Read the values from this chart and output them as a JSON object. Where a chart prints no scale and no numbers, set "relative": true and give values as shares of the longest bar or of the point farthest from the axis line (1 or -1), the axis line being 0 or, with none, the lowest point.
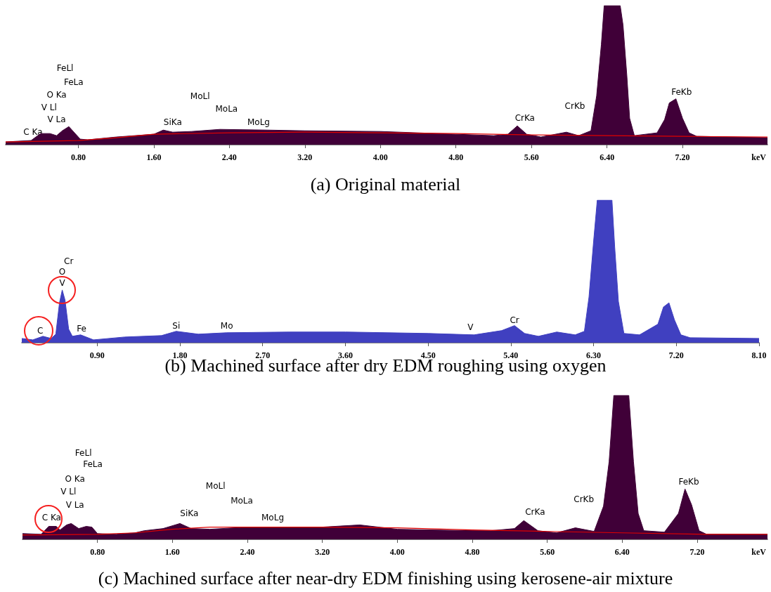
{
  "chart_data": [
    {
      "type": "area",
      "title": "(a) Original material",
      "xlabel": "keV",
      "relative": true,
      "grid": false,
      "xlim": [
        0.03,
        8.1
      ],
      "xticks": [
        {
          "value": 0.8,
          "label": "0.80"
        },
        {
          "value": 1.6,
          "label": "1.60"
        },
        {
          "value": 2.4,
          "label": "2.40"
        },
        {
          "value": 3.2,
          "label": "3.20"
        },
        {
          "value": 4.0,
          "label": "4.00"
        },
        {
          "value": 4.8,
          "label": "4.80"
        },
        {
          "value": 5.6,
          "label": "5.60"
        },
        {
          "value": 6.4,
          "label": "6.40"
        },
        {
          "value": 7.2,
          "label": "7.20"
        }
      ],
      "series": [
        {
          "color": "#400038",
          "x": [
            0.03,
            0.3,
            0.4,
            0.5,
            0.57,
            0.63,
            0.7,
            0.76,
            0.82,
            0.9,
            1.2,
            1.6,
            1.7,
            1.8,
            2.0,
            2.3,
            2.8,
            3.2,
            4.0,
            4.8,
            5.2,
            5.35,
            5.45,
            5.55,
            5.7,
            5.97,
            6.1,
            6.23,
            6.29,
            6.34,
            6.37,
            6.54,
            6.57,
            6.61,
            6.64,
            6.69,
            6.93,
            7.01,
            7.06,
            7.13,
            7.2,
            7.27,
            7.35,
            8.1
          ],
          "values": [
            0.02,
            0.03,
            0.08,
            0.08,
            0.065,
            0.1,
            0.13,
            0.085,
            0.04,
            0.035,
            0.055,
            0.075,
            0.105,
            0.09,
            0.095,
            0.11,
            0.105,
            0.1,
            0.095,
            0.075,
            0.065,
            0.075,
            0.135,
            0.075,
            0.055,
            0.09,
            0.065,
            0.1,
            0.35,
            0.72,
            1.0,
            1.0,
            0.86,
            0.5,
            0.19,
            0.065,
            0.085,
            0.18,
            0.3,
            0.33,
            0.19,
            0.085,
            0.06,
            0.05
          ]
        },
        {
          "type": "line",
          "color": "#e00000",
          "x": [
            0.03,
            0.8,
            1.2,
            1.6,
            2.4,
            3.2,
            4.0,
            4.8,
            5.6,
            6.4,
            7.2,
            8.1
          ],
          "values": [
            0.02,
            0.03,
            0.05,
            0.075,
            0.085,
            0.09,
            0.085,
            0.08,
            0.07,
            0.065,
            0.06,
            0.055
          ]
        }
      ],
      "annotations": [
        "C Ka",
        "V La",
        "V Ll",
        "O Ka",
        "FeLa",
        "FeLl",
        "SiKa",
        "MoLl",
        "MoLa",
        "MoLg",
        "CrKa",
        "CrKb",
        "FeKb"
      ]
    },
    {
      "type": "area",
      "title": "(b) Machined surface after dry EDM roughing using oxygen",
      "relative": true,
      "grid": false,
      "xlim": [
        0.08,
        8.1
      ],
      "xticks": [
        {
          "value": 0.9,
          "label": "0.90"
        },
        {
          "value": 1.8,
          "label": "1.80"
        },
        {
          "value": 2.7,
          "label": "2.70"
        },
        {
          "value": 3.6,
          "label": "3.60"
        },
        {
          "value": 4.5,
          "label": "4.50"
        },
        {
          "value": 5.4,
          "label": "5.40"
        },
        {
          "value": 6.3,
          "label": "6.30"
        },
        {
          "value": 7.2,
          "label": "7.20"
        },
        {
          "value": 8.1,
          "label": "8.10"
        }
      ],
      "series": [
        {
          "color": "#4040c0",
          "x": [
            0.08,
            0.2,
            0.31,
            0.4,
            0.45,
            0.49,
            0.52,
            0.55,
            0.59,
            0.63,
            0.72,
            0.86,
            1.2,
            1.6,
            1.76,
            2.0,
            2.31,
            3.0,
            3.6,
            4.5,
            5.0,
            5.3,
            5.44,
            5.55,
            5.7,
            5.9,
            6.1,
            6.2,
            6.25,
            6.3,
            6.34,
            6.5,
            6.53,
            6.57,
            6.63,
            6.8,
            7.0,
            7.06,
            7.12,
            7.18,
            7.25,
            7.35,
            8.1
          ],
          "values": [
            0.03,
            0.02,
            0.045,
            0.03,
            0.06,
            0.28,
            0.37,
            0.3,
            0.095,
            0.045,
            0.055,
            0.02,
            0.04,
            0.05,
            0.08,
            0.06,
            0.07,
            0.075,
            0.075,
            0.065,
            0.055,
            0.085,
            0.12,
            0.065,
            0.045,
            0.075,
            0.055,
            0.08,
            0.32,
            0.71,
            1.0,
            1.0,
            0.67,
            0.29,
            0.065,
            0.055,
            0.13,
            0.25,
            0.28,
            0.16,
            0.055,
            0.035,
            0.03
          ]
        }
      ],
      "annotations": [
        "C",
        "V",
        "O",
        "Cr",
        "Fe",
        "Si",
        "Mo",
        "V",
        "Cr"
      ]
    },
    {
      "type": "area",
      "title": "(c) Machined surface after near-dry EDM finishing using kerosene-air mixture",
      "xlabel": "keV",
      "relative": true,
      "grid": false,
      "xlim": [
        0,
        7.95
      ],
      "xticks": [
        {
          "value": 0.8,
          "label": "0.80"
        },
        {
          "value": 1.6,
          "label": "1.60"
        },
        {
          "value": 2.4,
          "label": "2.40"
        },
        {
          "value": 3.2,
          "label": "3.20"
        },
        {
          "value": 4.0,
          "label": "4.00"
        },
        {
          "value": 4.8,
          "label": "4.80"
        },
        {
          "value": 5.6,
          "label": "5.60"
        },
        {
          "value": 6.4,
          "label": "6.40"
        },
        {
          "value": 7.2,
          "label": "7.20"
        }
      ],
      "series": [
        {
          "color": "#400038",
          "x": [
            0.0,
            0.2,
            0.28,
            0.36,
            0.4,
            0.47,
            0.52,
            0.6,
            0.68,
            0.74,
            0.8,
            1.0,
            1.2,
            1.3,
            1.5,
            1.68,
            1.8,
            2.0,
            2.4,
            3.2,
            3.6,
            4.0,
            4.8,
            5.0,
            5.25,
            5.35,
            5.5,
            5.7,
            5.9,
            6.1,
            6.2,
            6.26,
            6.31,
            6.47,
            6.52,
            6.57,
            6.63,
            6.85,
            7.0,
            7.07,
            7.14,
            7.22,
            7.3,
            7.95
          ],
          "values": [
            0.04,
            0.035,
            0.09,
            0.09,
            0.065,
            0.1,
            0.11,
            0.075,
            0.09,
            0.085,
            0.04,
            0.035,
            0.045,
            0.06,
            0.075,
            0.11,
            0.075,
            0.07,
            0.085,
            0.085,
            0.1,
            0.07,
            0.06,
            0.06,
            0.075,
            0.13,
            0.06,
            0.045,
            0.08,
            0.055,
            0.23,
            0.54,
            1.0,
            1.0,
            0.54,
            0.18,
            0.06,
            0.05,
            0.18,
            0.35,
            0.24,
            0.06,
            0.035,
            0.035
          ]
        },
        {
          "type": "line",
          "color": "#e00000",
          "x": [
            0.0,
            0.8,
            1.2,
            1.6,
            2.0,
            3.2,
            4.0,
            4.8,
            5.6,
            6.4,
            7.3,
            7.95
          ],
          "values": [
            0.03,
            0.035,
            0.045,
            0.07,
            0.085,
            0.085,
            0.08,
            0.065,
            0.055,
            0.045,
            0.035,
            0.035
          ]
        }
      ],
      "annotations": [
        "C Ka",
        "V La",
        "V Ll",
        "O Ka",
        "FeLa",
        "FeLl",
        "SiKa",
        "MoLl",
        "MoLa",
        "MoLg",
        "CrKa",
        "CrKb",
        "FeKb"
      ]
    }
  ]
}
